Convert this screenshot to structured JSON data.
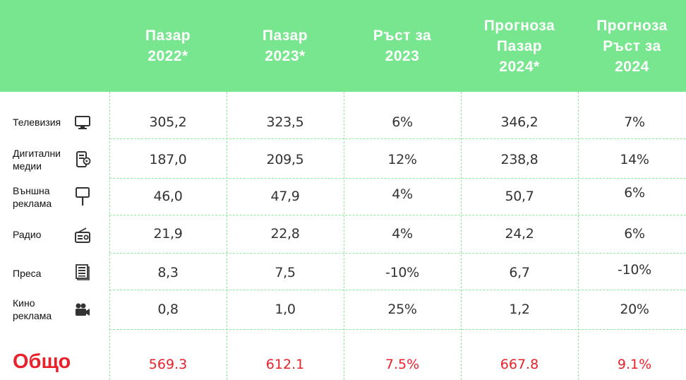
{
  "colors": {
    "header_bg": "#77e68e",
    "grid": "#8ee79e",
    "total_red": "#e8212b",
    "header_text": "#ffffff"
  },
  "header": {
    "col1": "Пазар\n2022*",
    "col2": "Пазар\n2023*",
    "col3": "Ръст за\n2023",
    "col4": "Прогноза\nПазар\n2024*",
    "col5": "Прогноза\nРъст за\n2024"
  },
  "rows": [
    {
      "label": "Телевизия",
      "icon": "tv-icon",
      "v1": "305,2",
      "v2": "323,5",
      "v3": "6%",
      "v4": "346,2",
      "v5": "7%"
    },
    {
      "label": "Дигитални\nмедии",
      "icon": "digital-media-icon",
      "v1": "187,0",
      "v2": "209,5",
      "v3": "12%",
      "v4": "238,8",
      "v5": "14%"
    },
    {
      "label": "Външна\nреклама",
      "icon": "billboard-icon",
      "v1": "46,0",
      "v2": "47,9",
      "v3": "4%",
      "v4": "50,7",
      "v5": "6%"
    },
    {
      "label": "Радио",
      "icon": "radio-icon",
      "v1": "21,9",
      "v2": "22,8",
      "v3": "4%",
      "v4": "24,2",
      "v5": "6%"
    },
    {
      "label": "Преса",
      "icon": "newspaper-icon",
      "v1": "8,3",
      "v2": "7,5",
      "v3": "-10%",
      "v4": "6,7",
      "v5": "-10%"
    },
    {
      "label": "Кино\nреклама",
      "icon": "cinema-camera-icon",
      "v1": "0,8",
      "v2": "1,0",
      "v3": "25%",
      "v4": "1,2",
      "v5": "20%"
    }
  ],
  "total": {
    "label": "Общо",
    "v1": "569.3",
    "v2": "612.1",
    "v3": "7.5%",
    "v4": "667.8",
    "v5": "9.1%"
  }
}
